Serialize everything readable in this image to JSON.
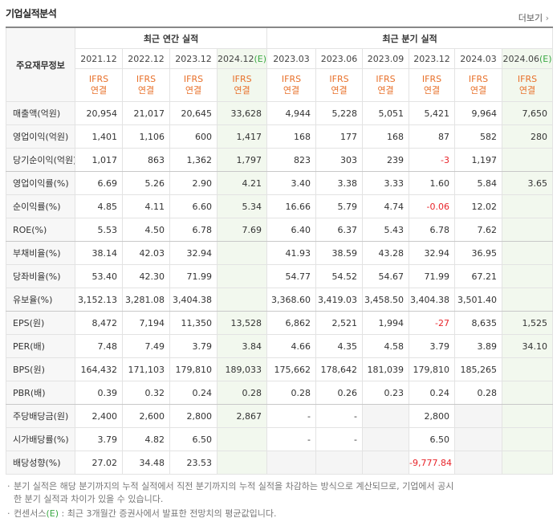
{
  "header": {
    "title": "기업실적분석",
    "more": "더보기"
  },
  "table": {
    "corner": "주요재무정보",
    "column_groups": [
      {
        "label": "최근 연간 실적",
        "span": 4
      },
      {
        "label": "최근 분기 실적",
        "span": 6
      }
    ],
    "columns": [
      {
        "period": "2021.12",
        "standard": "IFRS",
        "basis": "연결"
      },
      {
        "period": "2022.12",
        "standard": "IFRS",
        "basis": "연결"
      },
      {
        "period": "2023.12",
        "standard": "IFRS",
        "basis": "연결"
      },
      {
        "period": "2024.12",
        "suffix": "(E)",
        "standard": "IFRS",
        "basis": "연결"
      },
      {
        "period": "2023.03",
        "standard": "IFRS",
        "basis": "연결"
      },
      {
        "period": "2023.06",
        "standard": "IFRS",
        "basis": "연결"
      },
      {
        "period": "2023.09",
        "standard": "IFRS",
        "basis": "연결"
      },
      {
        "period": "2023.12",
        "standard": "IFRS",
        "basis": "연결"
      },
      {
        "period": "2024.03",
        "standard": "IFRS",
        "basis": "연결"
      },
      {
        "period": "2024.06",
        "suffix": "(E)",
        "standard": "IFRS",
        "basis": "연결"
      }
    ],
    "groups": [
      {
        "rows": [
          {
            "label": "매출액(억원)",
            "values": [
              "20,954",
              "21,017",
              "20,645",
              "33,628",
              "4,944",
              "5,228",
              "5,051",
              "5,421",
              "9,964",
              "7,650"
            ]
          },
          {
            "label": "영업이익(억원)",
            "values": [
              "1,401",
              "1,106",
              "600",
              "1,417",
              "168",
              "177",
              "168",
              "87",
              "582",
              "280"
            ]
          },
          {
            "label": "당기순이익(억원)",
            "values": [
              "1,017",
              "863",
              "1,362",
              "1,797",
              "823",
              "303",
              "239",
              "-3",
              "1,197",
              null
            ]
          }
        ]
      },
      {
        "rows": [
          {
            "label": "영업이익률(%)",
            "values": [
              "6.69",
              "5.26",
              "2.90",
              "4.21",
              "3.40",
              "3.38",
              "3.33",
              "1.60",
              "5.84",
              "3.65"
            ]
          },
          {
            "label": "순이익률(%)",
            "values": [
              "4.85",
              "4.11",
              "6.60",
              "5.34",
              "16.66",
              "5.79",
              "4.74",
              "-0.06",
              "12.02",
              null
            ]
          },
          {
            "label": "ROE(%)",
            "values": [
              "5.53",
              "4.50",
              "6.78",
              "7.69",
              "6.40",
              "6.37",
              "5.43",
              "6.78",
              "7.62",
              null
            ]
          }
        ]
      },
      {
        "rows": [
          {
            "label": "부채비율(%)",
            "values": [
              "38.14",
              "42.03",
              "32.94",
              null,
              "41.93",
              "38.59",
              "43.28",
              "32.94",
              "36.95",
              null
            ]
          },
          {
            "label": "당좌비율(%)",
            "values": [
              "53.40",
              "42.30",
              "71.99",
              null,
              "54.77",
              "54.52",
              "54.67",
              "71.99",
              "67.21",
              null
            ]
          },
          {
            "label": "유보율(%)",
            "values": [
              "3,152.13",
              "3,281.08",
              "3,404.38",
              null,
              "3,368.60",
              "3,419.03",
              "3,458.50",
              "3,404.38",
              "3,501.40",
              null
            ]
          }
        ]
      },
      {
        "rows": [
          {
            "label": "EPS(원)",
            "values": [
              "8,472",
              "7,194",
              "11,350",
              "13,528",
              "6,862",
              "2,521",
              "1,994",
              "-27",
              "8,635",
              "1,525"
            ]
          },
          {
            "label": "PER(배)",
            "values": [
              "7.48",
              "7.49",
              "3.79",
              "3.84",
              "4.66",
              "4.35",
              "4.58",
              "3.79",
              "3.89",
              "34.10"
            ]
          },
          {
            "label": "BPS(원)",
            "values": [
              "164,432",
              "171,103",
              "179,810",
              "189,033",
              "175,662",
              "178,642",
              "181,039",
              "179,810",
              "185,265",
              null
            ]
          },
          {
            "label": "PBR(배)",
            "values": [
              "0.39",
              "0.32",
              "0.24",
              "0.28",
              "0.28",
              "0.26",
              "0.23",
              "0.24",
              "0.28",
              null
            ]
          }
        ]
      },
      {
        "rows": [
          {
            "label": "주당배당금(원)",
            "values": [
              "2,400",
              "2,600",
              "2,800",
              "2,867",
              "-",
              "-",
              null,
              "2,800",
              null,
              null
            ]
          },
          {
            "label": "시가배당률(%)",
            "values": [
              "3.79",
              "4.82",
              "6.50",
              null,
              "-",
              "-",
              null,
              "6.50",
              null,
              null
            ]
          },
          {
            "label": "배당성향(%)",
            "values": [
              "27.02",
              "34.48",
              "23.53",
              null,
              null,
              null,
              null,
              "-9,777.84",
              null,
              null
            ]
          }
        ]
      }
    ]
  },
  "notes": {
    "first": "분기 실적은 해당 분기까지의 누적 실적에서 직전 분기까지의 누적 실적을 차감하는 방식으로 계산되므로, 기업에서 공시한 분기 실적과 차이가 있을 수 있습니다.",
    "second": {
      "prefix": "컨센서스",
      "mark": "(E)",
      "text": " : 최근 3개월간 증권사에서 발표한 전망치의 평균값입니다."
    }
  }
}
